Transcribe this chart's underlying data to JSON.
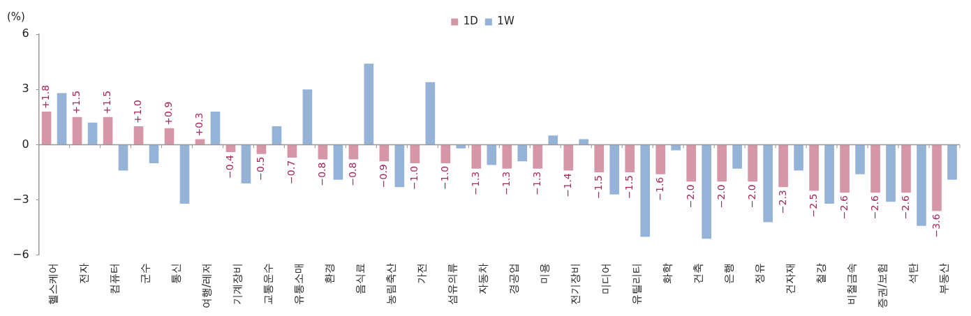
{
  "chart_data": {
    "type": "bar",
    "ylabel": "(%)",
    "legend": "top",
    "categories": [
      "헬스케어",
      "전자",
      "컴퓨터",
      "군수",
      "통신",
      "여행/레저",
      "기계장비",
      "교통운수",
      "유통소매",
      "환경",
      "음식료",
      "농림축산",
      "가전",
      "섬유의류",
      "자동차",
      "경공업",
      "미용",
      "전기장비",
      "미디어",
      "유틸리티",
      "화학",
      "건축",
      "은행",
      "정유",
      "건자재",
      "철강",
      "비철금속",
      "증권/보험",
      "석탄",
      "부동산"
    ],
    "series": [
      {
        "name": "1D",
        "color": "#d597a8",
        "values": [
          1.8,
          1.5,
          1.5,
          1.0,
          0.9,
          0.3,
          -0.4,
          -0.5,
          -0.7,
          -0.8,
          -0.8,
          -0.9,
          -1.0,
          -1.0,
          -1.3,
          -1.3,
          -1.3,
          -1.4,
          -1.5,
          -1.5,
          -1.6,
          -2.0,
          -2.0,
          -2.0,
          -2.3,
          -2.5,
          -2.6,
          -2.6,
          -2.6,
          -3.6
        ],
        "value_labels": [
          "+1.8",
          "+1.5",
          "+1.5",
          "+1.0",
          "+0.9",
          "+0.3",
          "−0.4",
          "−0.5",
          "−0.7",
          "−0.8",
          "−0.8",
          "−0.9",
          "−1.0",
          "−1.0",
          "−1.3",
          "−1.3",
          "−1.3",
          "−1.4",
          "−1.5",
          "−1.5",
          "−1.6",
          "−2.0",
          "−2.0",
          "−2.0",
          "−2.3",
          "−2.5",
          "−2.6",
          "−2.6",
          "−2.6",
          "−3.6"
        ]
      },
      {
        "name": "1W",
        "color": "#95b3d7",
        "values": [
          2.8,
          1.2,
          -1.4,
          -1.0,
          -3.2,
          1.8,
          -2.1,
          1.0,
          3.0,
          -1.9,
          4.4,
          -2.3,
          3.4,
          -0.2,
          -1.1,
          -0.9,
          0.5,
          0.3,
          -2.7,
          -5.0,
          -0.3,
          -5.1,
          -1.3,
          -4.2,
          -1.4,
          -3.2,
          -1.6,
          -3.1,
          -4.4,
          -1.9
        ]
      }
    ],
    "ylim": [
      -6,
      6
    ],
    "yticks": [
      {
        "value": 6,
        "label": "6"
      },
      {
        "value": 3,
        "label": "3"
      },
      {
        "value": 0,
        "label": "0"
      },
      {
        "value": -3,
        "label": "−3"
      },
      {
        "value": -6,
        "label": "−6"
      }
    ]
  }
}
